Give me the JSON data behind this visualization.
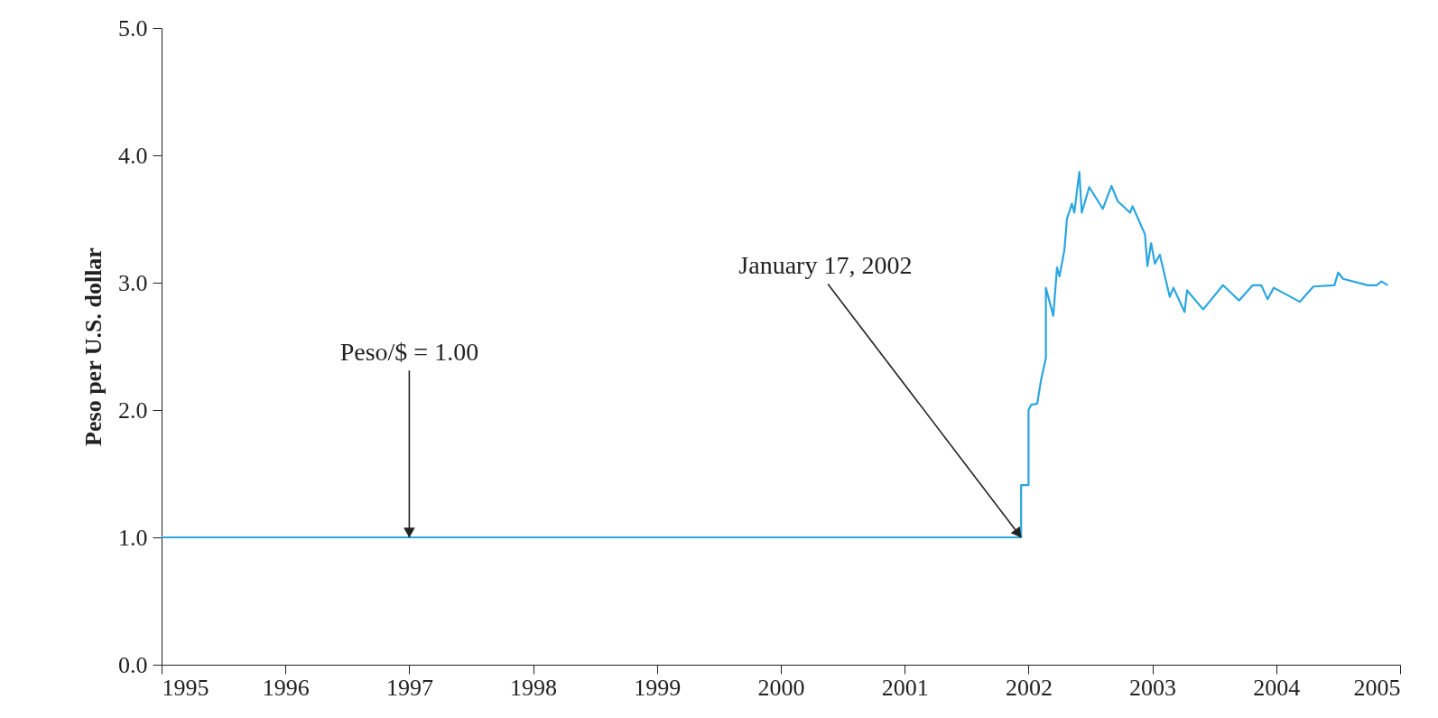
{
  "chart_data": {
    "type": "line",
    "ylabel": "Peso per U.S. dollar",
    "x": [
      1995.0,
      2001.94,
      2001.94,
      2002.0,
      2002.0,
      2002.02,
      2002.07,
      2002.1,
      2002.14,
      2002.14,
      2002.2,
      2002.23,
      2002.25,
      2002.29,
      2002.31,
      2002.35,
      2002.37,
      2002.41,
      2002.43,
      2002.49,
      2002.6,
      2002.67,
      2002.72,
      2002.82,
      2002.84,
      2002.94,
      2002.96,
      2002.99,
      2003.02,
      2003.06,
      2003.14,
      2003.17,
      2003.26,
      2003.28,
      2003.41,
      2003.57,
      2003.7,
      2003.81,
      2003.88,
      2003.93,
      2003.98,
      2004.19,
      2004.3,
      2004.47,
      2004.5,
      2004.54,
      2004.74,
      2004.81,
      2004.85,
      2004.9
    ],
    "series": [
      {
        "color": "#2aa6e0",
        "values": [
          1.0,
          1.0,
          1.41,
          1.41,
          2.0,
          2.04,
          2.05,
          2.23,
          2.41,
          2.96,
          2.74,
          3.12,
          3.05,
          3.26,
          3.5,
          3.62,
          3.55,
          3.87,
          3.55,
          3.75,
          3.58,
          3.76,
          3.64,
          3.55,
          3.6,
          3.38,
          3.13,
          3.31,
          3.15,
          3.22,
          2.89,
          2.96,
          2.77,
          2.94,
          2.79,
          2.98,
          2.86,
          2.98,
          2.98,
          2.87,
          2.96,
          2.85,
          2.97,
          2.98,
          3.08,
          3.03,
          2.98,
          2.98,
          3.01,
          2.98
        ]
      }
    ],
    "xlim": [
      1995,
      2005
    ],
    "xticks": [
      1995,
      1996,
      1997,
      1998,
      1999,
      2000,
      2001,
      2002,
      2003,
      2004,
      2005
    ],
    "ylim": [
      0,
      5
    ],
    "yticks": [
      {
        "value": 0,
        "label": "0.0"
      },
      {
        "value": 1,
        "label": "1.0"
      },
      {
        "value": 2,
        "label": "2.0"
      },
      {
        "value": 3,
        "label": "3.0"
      },
      {
        "value": 4,
        "label": "4.0"
      },
      {
        "value": 5,
        "label": "5.0"
      }
    ],
    "grid": false,
    "marker": "none",
    "line_style": "solid",
    "annotations": [
      {
        "text": "Peso/$ = 1.00",
        "x": 1997,
        "y": 1.0
      },
      {
        "text": "January 17, 2002",
        "x": 2001.94,
        "y": 1.0
      }
    ]
  }
}
